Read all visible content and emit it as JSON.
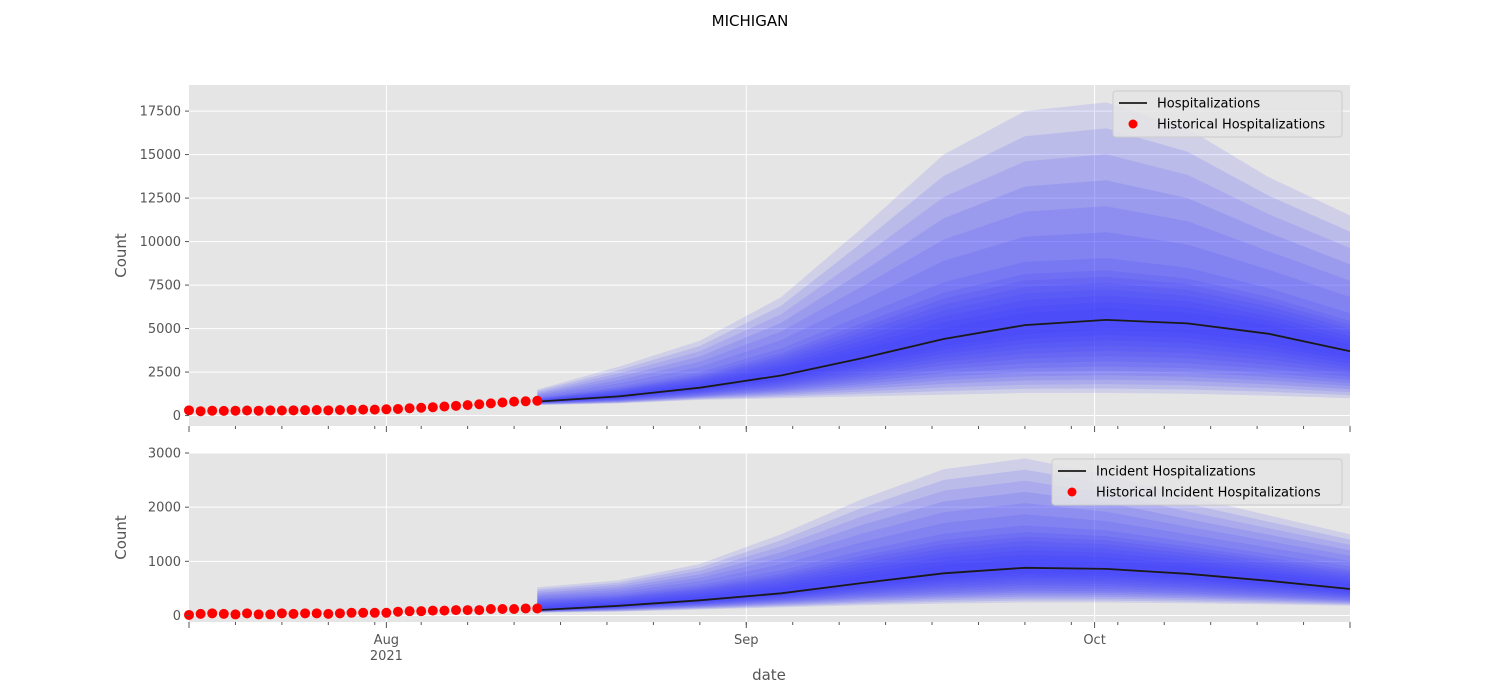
{
  "figure": {
    "title": "MICHIGAN",
    "xlabel": "date"
  },
  "chart_data": [
    {
      "type": "line",
      "ylabel": "Count",
      "ylim": [
        -600,
        19000
      ],
      "yticks": [
        0,
        2500,
        5000,
        7500,
        10000,
        12500,
        15000,
        17500
      ],
      "xlim": [
        "2021-07-15",
        "2021-10-23"
      ],
      "xticks": [
        {
          "date": "2021-08-01",
          "label": "Aug",
          "sublabel": "2021"
        },
        {
          "date": "2021-09-01",
          "label": "Sep",
          "sublabel": ""
        },
        {
          "date": "2021-10-01",
          "label": "Oct",
          "sublabel": ""
        }
      ],
      "grid": true,
      "legend": "top-right",
      "legend_entries": [
        {
          "label": "Hospitalizations",
          "kind": "line",
          "color": "#1a1a1a"
        },
        {
          "label": "Historical Hospitalizations",
          "kind": "marker",
          "color": "#ff0000"
        }
      ],
      "forecast": {
        "x": [
          "2021-08-14",
          "2021-08-21",
          "2021-08-28",
          "2021-09-04",
          "2021-09-11",
          "2021-09-18",
          "2021-09-25",
          "2021-10-02",
          "2021-10-09",
          "2021-10-16",
          "2021-10-23"
        ],
        "median": [
          800,
          1100,
          1600,
          2300,
          3300,
          4400,
          5200,
          5500,
          5300,
          4700,
          3700
        ],
        "lower_90": [
          600,
          700,
          900,
          1000,
          1100,
          1200,
          1300,
          1300,
          1250,
          1150,
          1000
        ],
        "upper_90": [
          1500,
          2800,
          4300,
          6800,
          10800,
          15000,
          17500,
          18000,
          16500,
          13700,
          11500
        ],
        "lower_50": [
          700,
          850,
          1150,
          1500,
          2000,
          2500,
          2800,
          2900,
          2800,
          2500,
          2100
        ],
        "upper_50": [
          1000,
          1600,
          2400,
          3700,
          5500,
          7300,
          8400,
          8600,
          8100,
          7000,
          5600
        ]
      },
      "historical": {
        "x": [
          "2021-07-15",
          "2021-07-16",
          "2021-07-17",
          "2021-07-18",
          "2021-07-19",
          "2021-07-20",
          "2021-07-21",
          "2021-07-22",
          "2021-07-23",
          "2021-07-24",
          "2021-07-25",
          "2021-07-26",
          "2021-07-27",
          "2021-07-28",
          "2021-07-29",
          "2021-07-30",
          "2021-07-31",
          "2021-08-01",
          "2021-08-02",
          "2021-08-03",
          "2021-08-04",
          "2021-08-05",
          "2021-08-06",
          "2021-08-07",
          "2021-08-08",
          "2021-08-09",
          "2021-08-10",
          "2021-08-11",
          "2021-08-12",
          "2021-08-13",
          "2021-08-14"
        ],
        "values": [
          300,
          250,
          280,
          270,
          280,
          290,
          280,
          300,
          290,
          300,
          310,
          320,
          300,
          320,
          330,
          340,
          340,
          360,
          380,
          420,
          450,
          480,
          520,
          560,
          600,
          650,
          700,
          750,
          800,
          820,
          850
        ]
      }
    },
    {
      "type": "line",
      "ylabel": "Count",
      "ylim": [
        -120,
        3000
      ],
      "yticks": [
        0,
        1000,
        2000,
        3000
      ],
      "xlim": [
        "2021-07-15",
        "2021-10-23"
      ],
      "grid": true,
      "legend": "top-right",
      "legend_entries": [
        {
          "label": "Incident Hospitalizations",
          "kind": "line",
          "color": "#1a1a1a"
        },
        {
          "label": "Historical Incident Hospitalizations",
          "kind": "marker",
          "color": "#ff0000"
        }
      ],
      "forecast": {
        "x": [
          "2021-08-14",
          "2021-08-21",
          "2021-08-28",
          "2021-09-04",
          "2021-09-11",
          "2021-09-18",
          "2021-09-25",
          "2021-10-02",
          "2021-10-09",
          "2021-10-16",
          "2021-10-23"
        ],
        "median": [
          100,
          180,
          280,
          410,
          600,
          780,
          880,
          860,
          770,
          640,
          490
        ],
        "lower_90": [
          50,
          70,
          110,
          150,
          190,
          220,
          240,
          240,
          225,
          205,
          180
        ],
        "upper_90": [
          520,
          650,
          950,
          1500,
          2150,
          2700,
          2900,
          2600,
          2200,
          1850,
          1500
        ],
        "lower_50": [
          80,
          120,
          180,
          260,
          350,
          420,
          470,
          460,
          420,
          360,
          290
        ],
        "upper_50": [
          300,
          380,
          550,
          800,
          1150,
          1450,
          1600,
          1520,
          1320,
          1100,
          880
        ]
      },
      "historical": {
        "x": [
          "2021-07-15",
          "2021-07-16",
          "2021-07-17",
          "2021-07-18",
          "2021-07-19",
          "2021-07-20",
          "2021-07-21",
          "2021-07-22",
          "2021-07-23",
          "2021-07-24",
          "2021-07-25",
          "2021-07-26",
          "2021-07-27",
          "2021-07-28",
          "2021-07-29",
          "2021-07-30",
          "2021-07-31",
          "2021-08-01",
          "2021-08-02",
          "2021-08-03",
          "2021-08-04",
          "2021-08-05",
          "2021-08-06",
          "2021-08-07",
          "2021-08-08",
          "2021-08-09",
          "2021-08-10",
          "2021-08-11",
          "2021-08-12",
          "2021-08-13",
          "2021-08-14"
        ],
        "values": [
          10,
          30,
          40,
          30,
          20,
          40,
          20,
          20,
          40,
          30,
          40,
          40,
          30,
          40,
          50,
          50,
          50,
          50,
          70,
          80,
          80,
          90,
          90,
          100,
          100,
          100,
          120,
          120,
          120,
          130,
          130
        ]
      }
    }
  ]
}
